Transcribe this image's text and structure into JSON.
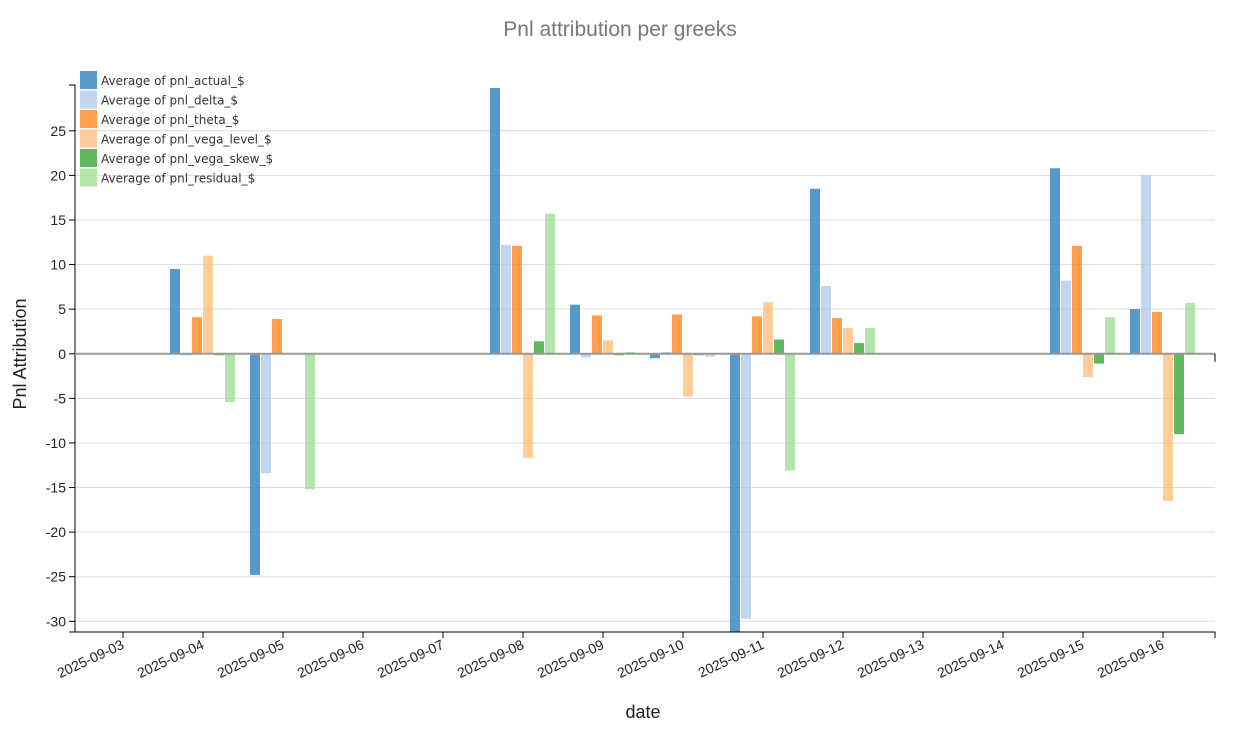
{
  "chart_data": {
    "type": "bar",
    "title": "Pnl attribution per greeks",
    "xlabel": "date",
    "ylabel": "Pnl Attribution",
    "ylim": [
      -31.2,
      29.8
    ],
    "yticks": [
      -30,
      -25,
      -20,
      -15,
      -10,
      -5,
      0,
      5,
      10,
      15,
      20,
      25
    ],
    "grid": true,
    "legend_position": "top-left",
    "categories": [
      "2025-09-03",
      "2025-09-04",
      "2025-09-05",
      "2025-09-06",
      "2025-09-07",
      "2025-09-08",
      "2025-09-09",
      "2025-09-10",
      "2025-09-11",
      "2025-09-12",
      "2025-09-13",
      "2025-09-14",
      "2025-09-15",
      "2025-09-16"
    ],
    "series": [
      {
        "name": "Average of pnl_actual_$",
        "color": "#1f77b4",
        "values": [
          0,
          9.5,
          -24.8,
          0,
          0,
          29.8,
          5.5,
          -0.5,
          -31.2,
          18.5,
          0,
          0,
          20.8,
          5.0
        ]
      },
      {
        "name": "Average of pnl_delta_$",
        "color": "#aec7e8",
        "values": [
          0,
          -0.2,
          -13.4,
          0,
          0,
          12.2,
          -0.4,
          0.2,
          -29.7,
          7.6,
          0,
          0,
          8.2,
          20.0
        ]
      },
      {
        "name": "Average of pnl_theta_$",
        "color": "#ff7f0e",
        "values": [
          0,
          4.1,
          3.9,
          0,
          0,
          12.1,
          4.3,
          4.4,
          4.2,
          4.0,
          0,
          0,
          12.1,
          4.7
        ]
      },
      {
        "name": "Average of pnl_vega_level_$",
        "color": "#ffbb78",
        "values": [
          0,
          11.0,
          0,
          0,
          0,
          -11.7,
          1.5,
          -4.8,
          5.8,
          2.9,
          0,
          0,
          -2.6,
          -16.5
        ]
      },
      {
        "name": "Average of pnl_vega_skew_$",
        "color": "#2ca02c",
        "values": [
          0,
          -0.1,
          0,
          0,
          0,
          1.4,
          -0.1,
          -0.1,
          1.6,
          1.2,
          0,
          0,
          -1.1,
          -9.0
        ]
      },
      {
        "name": "Average of pnl_residual_$",
        "color": "#98df8a",
        "values": [
          0,
          -5.4,
          -15.2,
          0,
          0,
          15.7,
          0.2,
          -0.3,
          -13.1,
          2.9,
          0,
          0,
          4.1,
          5.7
        ]
      }
    ]
  }
}
